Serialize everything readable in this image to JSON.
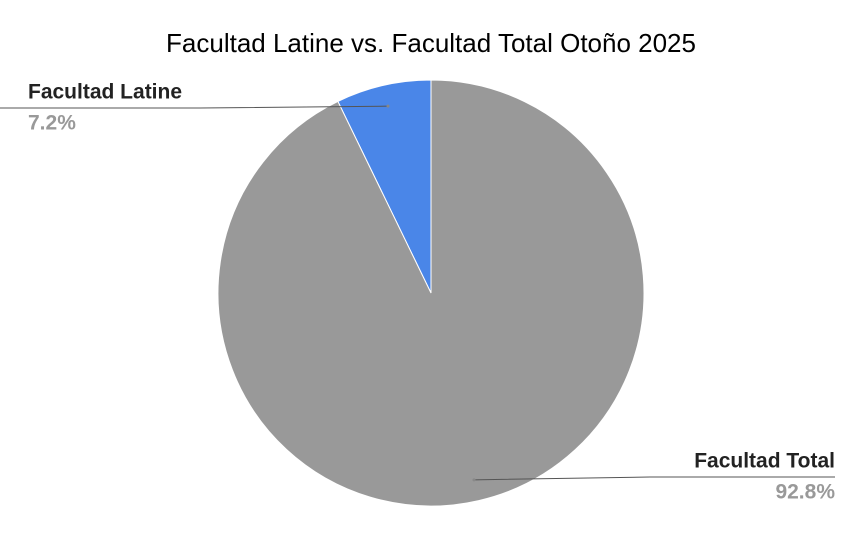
{
  "chart_data": {
    "type": "pie",
    "title": "Facultad Latine vs. Facultad Total Otoño 2025",
    "categories": [
      "Facultad Latine",
      "Facultad Total"
    ],
    "values": [
      7.2,
      92.8
    ],
    "value_labels": [
      "7.2%",
      "92.8%"
    ],
    "colors": [
      "#4a86e8",
      "#999999"
    ]
  }
}
